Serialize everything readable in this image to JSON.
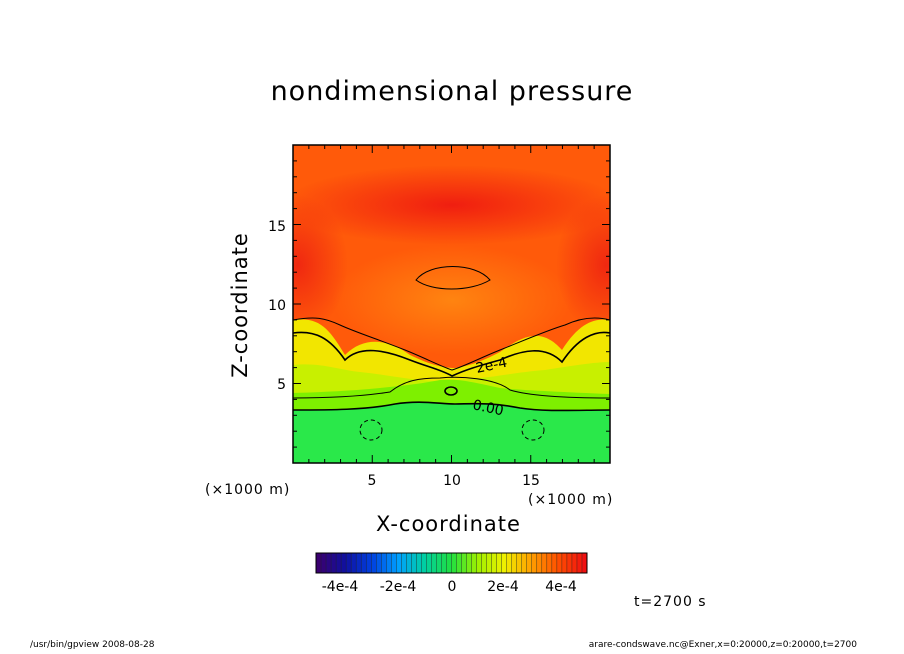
{
  "chart_data": {
    "type": "heatmap",
    "title": "nondimensional pressure",
    "xlabel": "X-coordinate",
    "ylabel": "Z-coordinate",
    "x_unit": "(×1000 m)",
    "y_unit": "(×1000 m)",
    "xlim": [
      0,
      20
    ],
    "ylim": [
      0,
      20
    ],
    "x_ticks": [
      "5",
      "10",
      "15"
    ],
    "y_ticks": [
      "5",
      "10",
      "15"
    ],
    "contour_labels": [
      "2e-4",
      "0.00"
    ],
    "colorbar": {
      "range": [
        -0.0005,
        0.0005
      ],
      "tick_labels": [
        "-4e-4",
        "-2e-4",
        "0",
        "2e-4",
        "4e-4"
      ],
      "colors": [
        "#3a0070",
        "#1010a0",
        "#0040e0",
        "#00a0ff",
        "#00d0a0",
        "#20e040",
        "#a0f000",
        "#f0f000",
        "#ffa000",
        "#ff5000",
        "#f01010"
      ]
    },
    "field_summary": {
      "upper_region": "positive, about 3e-4 to 4e-4 (orange/red)",
      "middle_band": "about 1e-4 to 2e-4 (yellow)",
      "lower_region": "about 0 to 1e-4 (green)"
    }
  },
  "footer": {
    "left": "/usr/bin/gpview   2008-08-28",
    "right": "arare-condswave.nc@Exner,x=0:20000,z=0:20000,t=2700"
  },
  "time_label": "t=2700 s"
}
